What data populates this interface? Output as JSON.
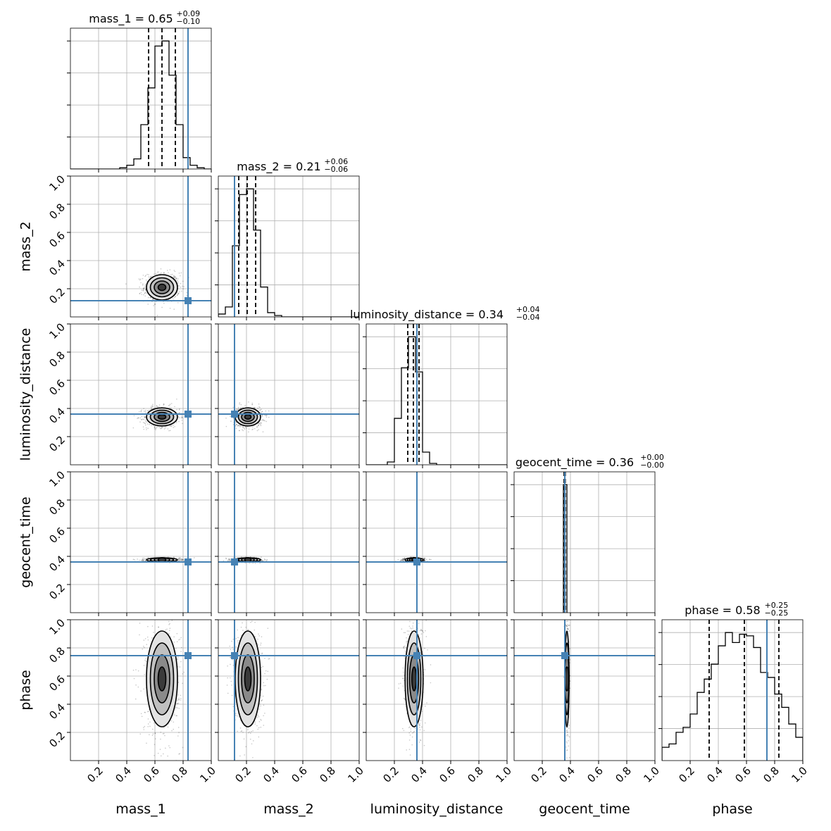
{
  "chart_data": {
    "type": "corner",
    "parameters": [
      "mass_1",
      "mass_2",
      "luminosity_distance",
      "geocent_time",
      "phase"
    ],
    "axis_labels": [
      "mass_1",
      "mass_2",
      "luminosity_distance",
      "geocent_time",
      "phase"
    ],
    "range": [
      0,
      1
    ],
    "tick_labels": [
      "0.2",
      "0.4",
      "0.6",
      "0.8",
      "1.0"
    ],
    "grid": true,
    "truth_color": "#4682b4",
    "truths": [
      0.835,
      0.115,
      0.36,
      0.36,
      0.745
    ],
    "median": [
      0.65,
      0.21,
      0.34,
      0.36,
      0.58
    ],
    "err_plus": [
      0.09,
      0.06,
      0.04,
      0.0,
      0.25
    ],
    "err_minus": [
      0.1,
      0.06,
      0.04,
      0.0,
      0.25
    ],
    "quantiles": [
      [
        0.555,
        0.65,
        0.745
      ],
      [
        0.145,
        0.205,
        0.265
      ],
      [
        0.295,
        0.335,
        0.375
      ],
      [
        0.355,
        0.36,
        0.363
      ],
      [
        0.335,
        0.585,
        0.83
      ]
    ],
    "titles": [
      {
        "main": "mass_1 = 0.65",
        "plus": "+0.09",
        "minus": "−0.10"
      },
      {
        "main": "mass_2 = 0.21",
        "plus": "+0.06",
        "minus": "−0.06"
      },
      {
        "main": "luminosity_distance = 0.34",
        "plus": "+0.04",
        "minus": "−0.04"
      },
      {
        "main": "geocent_time = 0.36",
        "plus": "+0.00",
        "minus": "−0.00"
      },
      {
        "main": "phase = 0.58",
        "plus": "+0.25",
        "minus": "−0.25"
      }
    ],
    "histograms": [
      {
        "start": 0,
        "step": 0.05,
        "counts": [
          0,
          0,
          0,
          0,
          0,
          0,
          0,
          1,
          3,
          8,
          35,
          64,
          97,
          101,
          74,
          35,
          9,
          3,
          1,
          0
        ]
      },
      {
        "start": 0,
        "step": 0.05,
        "counts": [
          2,
          7,
          50,
          86,
          90,
          61,
          21,
          3,
          1,
          0,
          0,
          0,
          0,
          0,
          0,
          0,
          0,
          0,
          0,
          0
        ]
      },
      {
        "start": 0,
        "step": 0.05,
        "counts": [
          0,
          0,
          0,
          2,
          33,
          69,
          91,
          66,
          9,
          1,
          0,
          0,
          0,
          0,
          0,
          0,
          0,
          0,
          0,
          0
        ]
      },
      {
        "start": 0.35,
        "step": 0.025,
        "counts": [
          100
        ]
      },
      {
        "start": 0,
        "step": 0.05,
        "counts": [
          8,
          10,
          17,
          20,
          28,
          41,
          49,
          58,
          69,
          77,
          71,
          76,
          75,
          68,
          53,
          50,
          40,
          32,
          22,
          14
        ]
      }
    ],
    "posterior": {
      "center": [
        0.65,
        0.21,
        0.34,
        0.375,
        0.58
      ],
      "sigma": [
        0.055,
        0.045,
        0.032,
        0.006,
        0.17
      ]
    }
  }
}
